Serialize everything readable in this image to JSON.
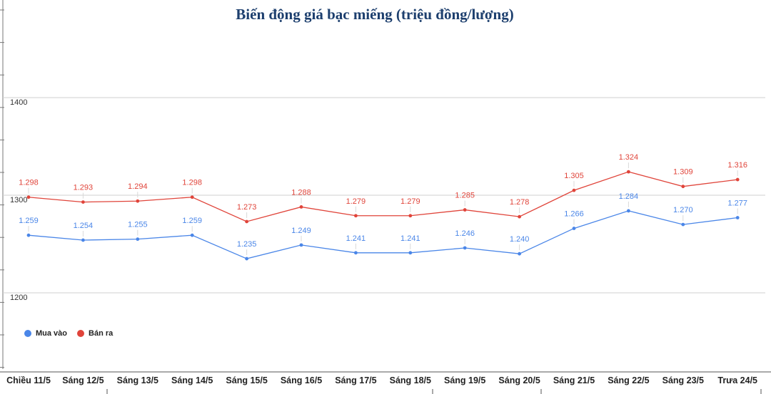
{
  "chart_data": {
    "type": "line",
    "title": "Biến động giá bạc miếng (triệu đồng/lượng)",
    "categories": [
      "Chiều 11/5",
      "Sáng 12/5",
      "Sáng 13/5",
      "Sáng 14/5",
      "Sáng 15/5",
      "Sáng 16/5",
      "Sáng 17/5",
      "Sáng 18/5",
      "Sáng 19/5",
      "Sáng 20/5",
      "Sáng 21/5",
      "Sáng 22/5",
      "Sáng 23/5",
      "Trưa 24/5"
    ],
    "y_ticks": [
      "1200",
      "1300",
      "1400"
    ],
    "ylim": [
      1200,
      1400
    ],
    "grid": true,
    "legend_position": "bottom-left",
    "series": [
      {
        "name": "Mua vào",
        "color": "#4a86e8",
        "values": [
          1259,
          1254,
          1255,
          1259,
          1235,
          1249,
          1241,
          1241,
          1246,
          1240,
          1266,
          1284,
          1270,
          1277
        ],
        "labels": [
          "1.259",
          "1.254",
          "1.255",
          "1.259",
          "1.235",
          "1.249",
          "1.241",
          "1.241",
          "1.246",
          "1.240",
          "1.266",
          "1.284",
          "1.270",
          "1.277"
        ]
      },
      {
        "name": "Bán ra",
        "color": "#e0443a",
        "values": [
          1298,
          1293,
          1294,
          1298,
          1273,
          1288,
          1279,
          1279,
          1285,
          1278,
          1305,
          1324,
          1309,
          1316
        ],
        "labels": [
          "1.298",
          "1.293",
          "1.294",
          "1.298",
          "1.273",
          "1.288",
          "1.279",
          "1.279",
          "1.285",
          "1.278",
          "1.305",
          "1.324",
          "1.309",
          "1.316"
        ]
      }
    ]
  }
}
